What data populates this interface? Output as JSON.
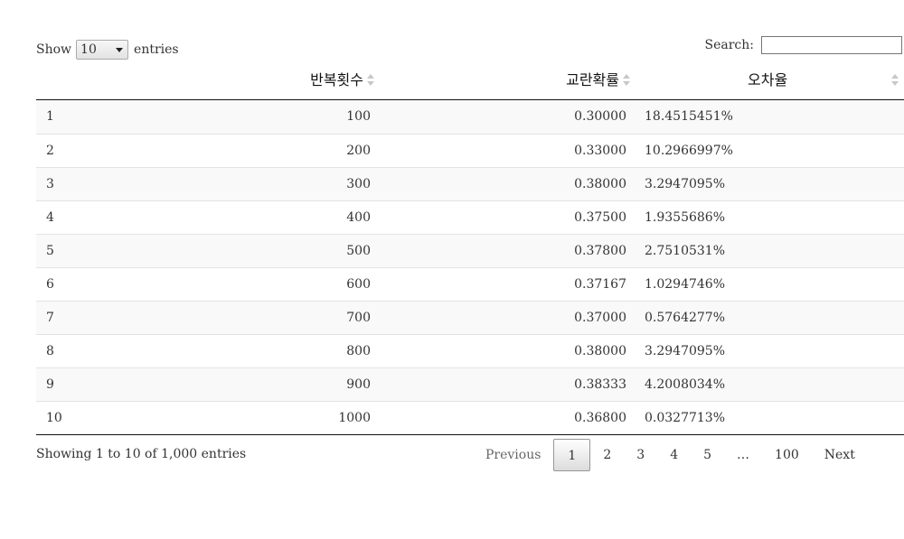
{
  "length": {
    "show_label": "Show",
    "selected": "10",
    "entries_label": "entries"
  },
  "search": {
    "label": "Search:",
    "value": ""
  },
  "table": {
    "columns": [
      "",
      "반복횟수",
      "교란확률",
      "오차율"
    ],
    "rows": [
      [
        "1",
        "100",
        "0.30000",
        "18.4515451%"
      ],
      [
        "2",
        "200",
        "0.33000",
        "10.2966997%"
      ],
      [
        "3",
        "300",
        "0.38000",
        "3.2947095%"
      ],
      [
        "4",
        "400",
        "0.37500",
        "1.9355686%"
      ],
      [
        "5",
        "500",
        "0.37800",
        "2.7510531%"
      ],
      [
        "6",
        "600",
        "0.37167",
        "1.0294746%"
      ],
      [
        "7",
        "700",
        "0.37000",
        "0.5764277%"
      ],
      [
        "8",
        "800",
        "0.38000",
        "3.2947095%"
      ],
      [
        "9",
        "900",
        "0.38333",
        "4.2008034%"
      ],
      [
        "10",
        "1000",
        "0.36800",
        "0.0327713%"
      ]
    ]
  },
  "info": "Showing 1 to 10 of 1,000 entries",
  "pagination": {
    "previous": "Previous",
    "pages": [
      "1",
      "2",
      "3",
      "4",
      "5"
    ],
    "ellipsis": "…",
    "last": "100",
    "next": "Next",
    "current": "1"
  }
}
